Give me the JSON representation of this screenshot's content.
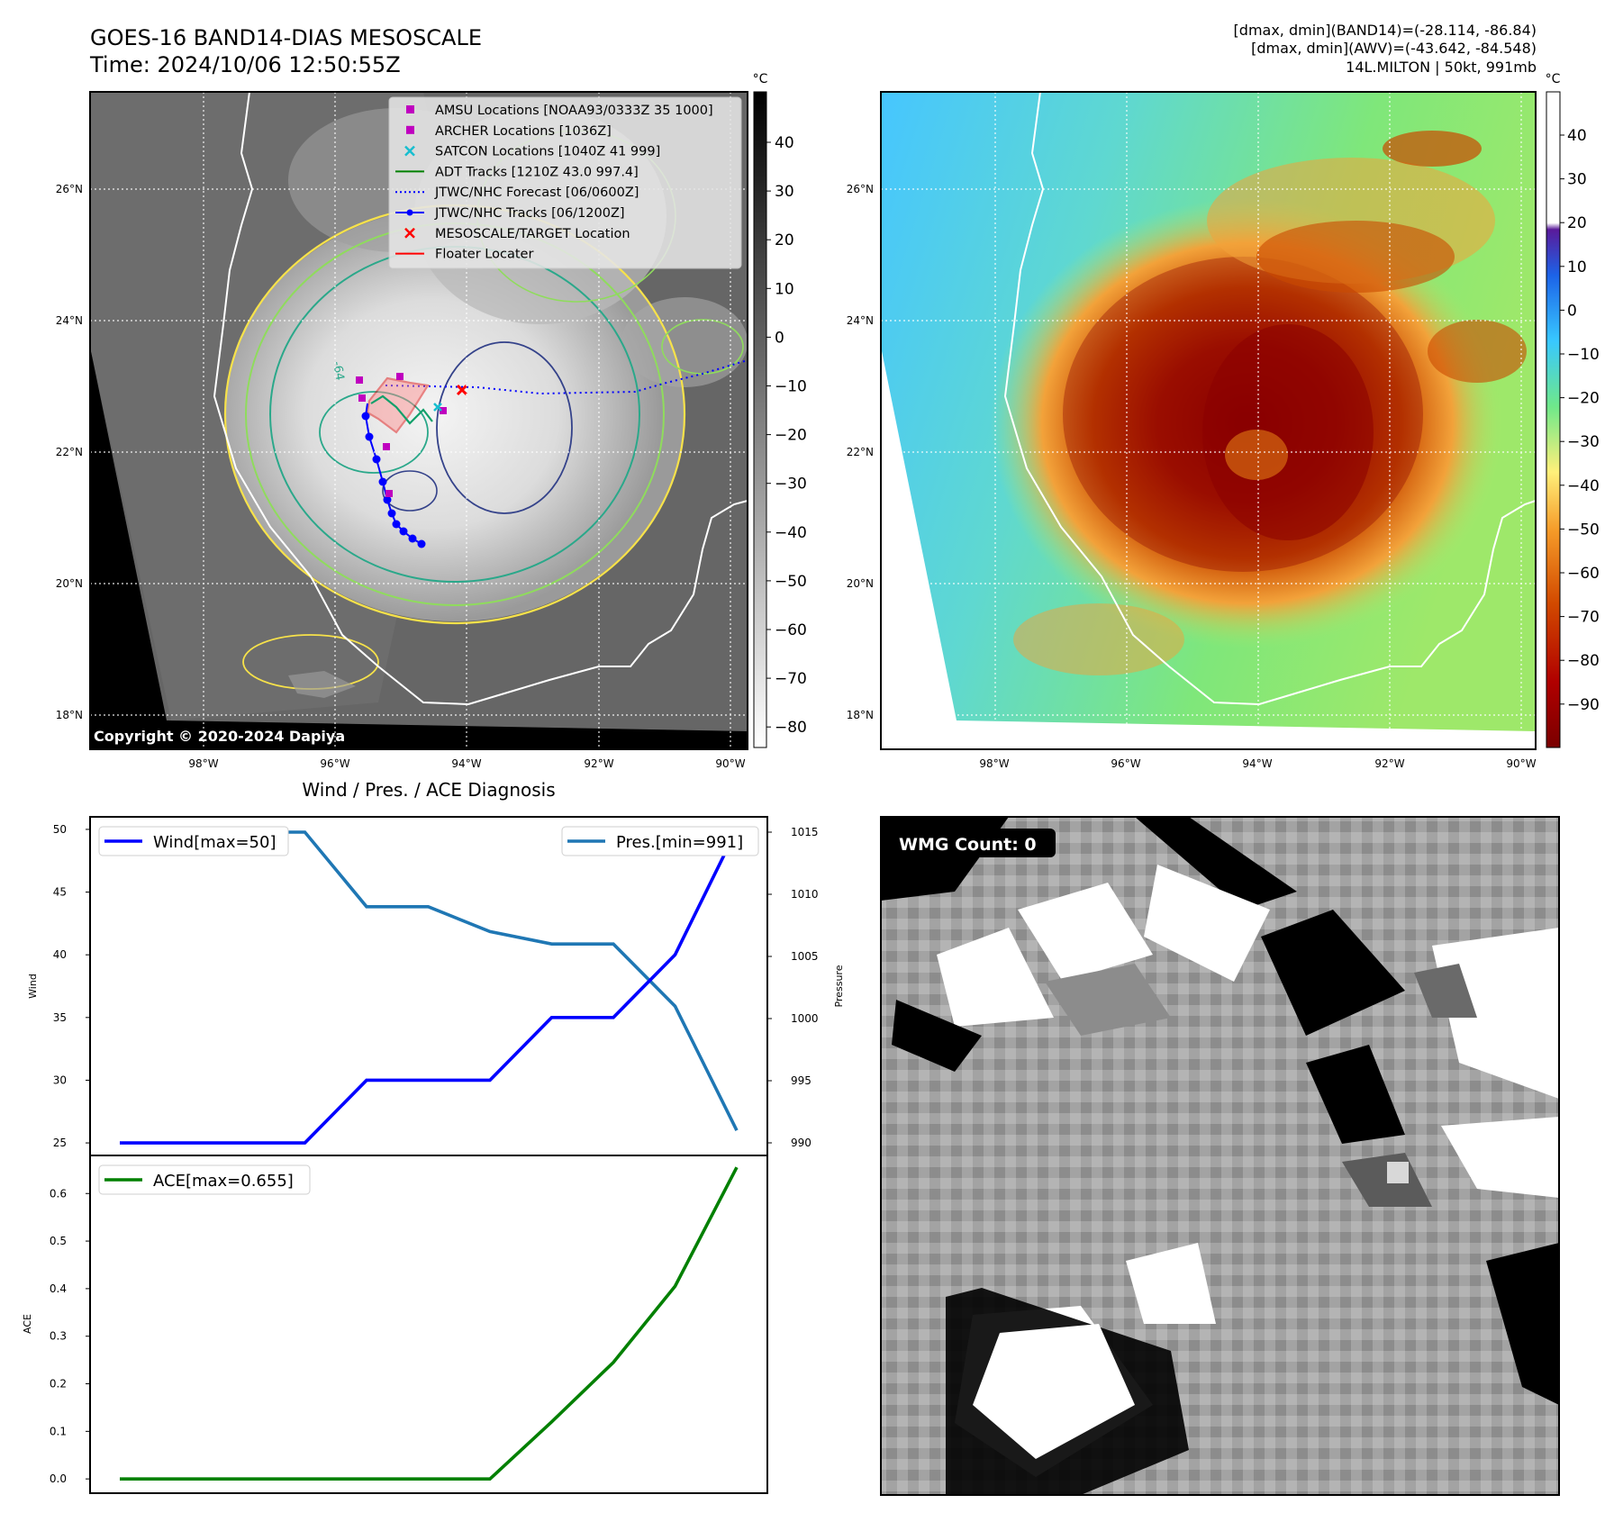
{
  "header": {
    "title_line1": "GOES-16 BAND14-DIAS MESOSCALE",
    "title_line2": "Time: 2024/10/06 12:50:55Z",
    "info_line1": "[dmax, dmin](BAND14)=(-28.114, -86.84)",
    "info_line2": "[dmax, dmin](AWV)=(-43.642, -84.548)",
    "info_line3": "14L.MILTON | 50kt, 991mb"
  },
  "map": {
    "lat_labels": [
      "26°N",
      "24°N",
      "22°N",
      "20°N",
      "18°N"
    ],
    "lon_labels": [
      "98°W",
      "96°W",
      "94°W",
      "92°W",
      "90°W"
    ],
    "copyright": "Copyright © 2020-2024 Dapiya",
    "contour_label": "-64"
  },
  "colorbar_gray": {
    "unit": "°C",
    "ticks": [
      "40",
      "30",
      "20",
      "10",
      "0",
      "−10",
      "−20",
      "−30",
      "−40",
      "−50",
      "−60",
      "−70",
      "−80"
    ]
  },
  "colorbar_color": {
    "unit": "°C",
    "ticks": [
      "40",
      "30",
      "20",
      "10",
      "0",
      "−10",
      "−20",
      "−30",
      "−40",
      "−50",
      "−60",
      "−70",
      "−80",
      "−90"
    ]
  },
  "legend": [
    {
      "label": "AMSU Locations [NOAA93/0333Z 35 1000]",
      "marker": "square",
      "color": "#bf00bf"
    },
    {
      "label": "ARCHER Locations [1036Z]",
      "marker": "square",
      "color": "#bf00bf"
    },
    {
      "label": "SATCON Locations [1040Z 41 999]",
      "marker": "x",
      "color": "#17becf"
    },
    {
      "label": "ADT Tracks [1210Z 43.0 997.4]",
      "marker": "line",
      "color": "#008000"
    },
    {
      "label": "JTWC/NHC Forecast [06/0600Z]",
      "marker": "dotted",
      "color": "#0000ff"
    },
    {
      "label": "JTWC/NHC Tracks [06/1200Z]",
      "marker": "line-dot",
      "color": "#0000ff"
    },
    {
      "label": "MESOSCALE/TARGET Location",
      "marker": "x",
      "color": "#ff0000"
    },
    {
      "label": "Floater Locater",
      "marker": "line",
      "color": "#ff0000"
    }
  ],
  "wmg": {
    "label": "WMG Count: 0"
  },
  "chart_data": [
    {
      "type": "line",
      "title": "Wind / Pres. / ACE Diagnosis",
      "ylabel": "Wind",
      "ylim": [
        24,
        51
      ],
      "y_ticks": [
        25,
        30,
        35,
        40,
        45,
        50
      ],
      "x": [
        0,
        1,
        2,
        3,
        4,
        5,
        6,
        7,
        8,
        9,
        10
      ],
      "series": [
        {
          "name": "Wind[max=50]",
          "color": "#0000ff",
          "values": [
            25,
            25,
            25,
            25,
            30,
            30,
            30,
            35,
            35,
            40,
            50
          ]
        }
      ]
    },
    {
      "type": "line",
      "ylabel": "Pressure",
      "ylim": [
        990,
        1015
      ],
      "y_ticks": [
        990,
        995,
        1000,
        1005,
        1010,
        1015
      ],
      "x": [
        0,
        1,
        2,
        3,
        4,
        5,
        6,
        7,
        8,
        9,
        10
      ],
      "series": [
        {
          "name": "Pres.[min=991]",
          "color": "#1f77b4",
          "values": [
            1015,
            1015,
            1015,
            1015,
            1009,
            1009,
            1007,
            1006,
            1006,
            1001,
            991
          ]
        }
      ]
    },
    {
      "type": "line",
      "ylabel": "ACE",
      "ylim": [
        -0.03,
        0.68
      ],
      "y_ticks": [
        0.0,
        0.1,
        0.2,
        0.3,
        0.4,
        0.5,
        0.6
      ],
      "x": [
        0,
        1,
        2,
        3,
        4,
        5,
        6,
        7,
        8,
        9,
        10
      ],
      "series": [
        {
          "name": "ACE[max=0.655]",
          "color": "#008000",
          "values": [
            0,
            0,
            0,
            0,
            0,
            0,
            0,
            0.12,
            0.245,
            0.405,
            0.655
          ]
        }
      ]
    }
  ]
}
